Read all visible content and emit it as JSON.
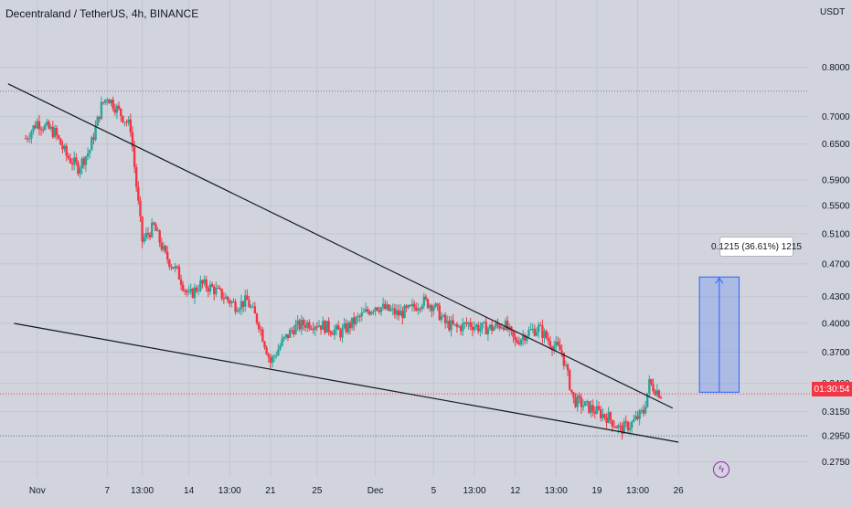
{
  "header": {
    "title": "Decentraland / TetherUS, 4h, BINANCE",
    "currency": "USDT"
  },
  "colors": {
    "up": "#26a69a",
    "down": "#f23645",
    "background": "#d1d4dc",
    "trendline": "#131722",
    "measure": "#2962ff",
    "badge": "#9c27b0"
  },
  "chart_data": {
    "type": "candlestick",
    "symbol": "MANAUSDT",
    "interval": "4h",
    "exchange": "BINANCE",
    "y_scale": "log",
    "ylim": [
      0.264,
      0.96
    ],
    "y_ticks": [
      "0.8000",
      "0.7000",
      "0.6500",
      "0.5900",
      "0.5500",
      "0.5100",
      "0.4700",
      "0.4300",
      "0.4000",
      "0.3700",
      "0.3400",
      "0.3150",
      "0.2950",
      "0.2750"
    ],
    "y_tick_values": [
      0.8,
      0.7,
      0.65,
      0.59,
      0.55,
      0.51,
      0.47,
      0.43,
      0.4,
      0.37,
      0.34,
      0.315,
      0.295,
      0.275
    ],
    "x_ticks": [
      "Nov",
      "7",
      "13:00",
      "14",
      "13:00",
      "21",
      "25",
      "Dec",
      "5",
      "13:00",
      "12",
      "13:00",
      "19",
      "13:00",
      "26"
    ],
    "x_tick_positions": [
      1.0,
      7.0,
      10.0,
      14.0,
      17.5,
      21.0,
      25.0,
      30.0,
      35.0,
      38.5,
      42.0,
      45.5,
      49.0,
      52.5,
      56.0
    ],
    "x_range": [
      -2.2,
      67.2
    ],
    "current_price": 0.3305,
    "current_price_label": "01:30:54",
    "horizontal_lines": [
      0.75,
      0.295
    ],
    "price_path": [
      [
        0.0,
        0.66
      ],
      [
        1.0,
        0.69
      ],
      [
        2.5,
        0.67
      ],
      [
        3.5,
        0.63
      ],
      [
        4.5,
        0.61
      ],
      [
        5.5,
        0.64
      ],
      [
        6.5,
        0.72
      ],
      [
        7.0,
        0.74
      ],
      [
        8.0,
        0.71
      ],
      [
        9.0,
        0.68
      ],
      [
        9.5,
        0.58
      ],
      [
        10.0,
        0.5
      ],
      [
        11.0,
        0.52
      ],
      [
        12.0,
        0.48
      ],
      [
        13.0,
        0.46
      ],
      [
        14.0,
        0.43
      ],
      [
        15.0,
        0.445
      ],
      [
        16.0,
        0.44
      ],
      [
        17.0,
        0.43
      ],
      [
        18.0,
        0.42
      ],
      [
        19.0,
        0.425
      ],
      [
        20.0,
        0.4
      ],
      [
        21.0,
        0.36
      ],
      [
        22.0,
        0.38
      ],
      [
        23.0,
        0.395
      ],
      [
        24.0,
        0.4
      ],
      [
        25.0,
        0.4
      ],
      [
        26.0,
        0.395
      ],
      [
        27.0,
        0.39
      ],
      [
        28.0,
        0.4
      ],
      [
        29.0,
        0.41
      ],
      [
        30.0,
        0.42
      ],
      [
        31.0,
        0.415
      ],
      [
        32.0,
        0.41
      ],
      [
        33.0,
        0.415
      ],
      [
        34.0,
        0.425
      ],
      [
        35.0,
        0.42
      ],
      [
        36.0,
        0.4
      ],
      [
        37.0,
        0.395
      ],
      [
        38.0,
        0.4
      ],
      [
        39.0,
        0.395
      ],
      [
        40.0,
        0.395
      ],
      [
        41.0,
        0.4
      ],
      [
        42.0,
        0.38
      ],
      [
        43.0,
        0.39
      ],
      [
        44.0,
        0.395
      ],
      [
        45.0,
        0.38
      ],
      [
        46.0,
        0.37
      ],
      [
        47.0,
        0.325
      ],
      [
        48.0,
        0.32
      ],
      [
        49.0,
        0.315
      ],
      [
        50.0,
        0.31
      ],
      [
        51.0,
        0.3
      ],
      [
        52.0,
        0.305
      ],
      [
        53.0,
        0.315
      ],
      [
        53.5,
        0.34
      ],
      [
        54.0,
        0.335
      ],
      [
        54.5,
        0.33
      ]
    ],
    "trendlines": [
      {
        "name": "upper",
        "from": [
          -1.5,
          0.765
        ],
        "to": [
          55.5,
          0.318
        ]
      },
      {
        "name": "lower",
        "from": [
          -1.0,
          0.4
        ],
        "to": [
          56.0,
          0.29
        ]
      }
    ],
    "measure": {
      "label": "0.1215 (36.61%) 1215",
      "from_price": 0.332,
      "to_price": 0.4535,
      "x_from": 57.8,
      "x_to": 61.2
    }
  }
}
